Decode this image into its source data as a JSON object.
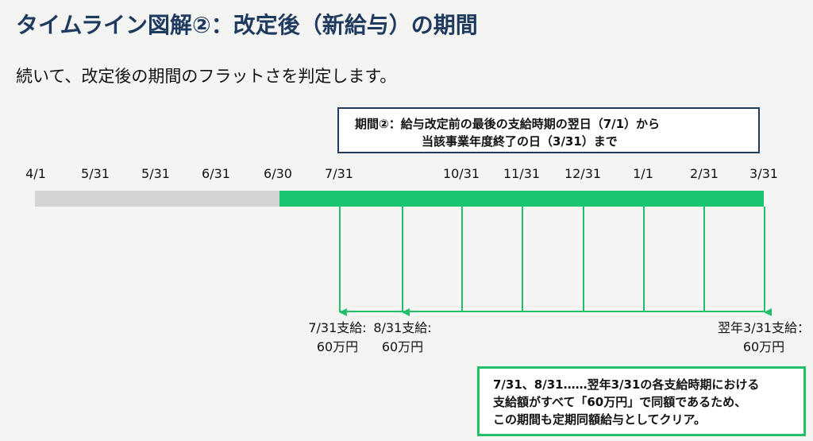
{
  "title": "タイムライン図解②：改定後（新給与）の期間",
  "intro": "続いて、改定後の期間のフラットさを判定します。",
  "period_box": {
    "line1": "期間②：給与改定前の最後の支給時期の翌日（7/1）から",
    "line2": "当該事業年度終了の日（3/31）まで"
  },
  "timeline": {
    "tick_labels": [
      "4/1",
      "5/31",
      "5/31",
      "6/31",
      "6/30",
      "7/31",
      "10/31",
      "11/31",
      "12/31",
      "1/1",
      "2/31",
      "3/31"
    ],
    "payment_labels": [
      {
        "line1": "7/31支給:",
        "line2": "60万円"
      },
      {
        "line1": "8/31支給:",
        "line2": "60万円"
      },
      {
        "line1": "翌年3/31支給：",
        "line2": "60万円"
      }
    ]
  },
  "note": {
    "line1": "7/31、8/31……翌年3/31の各支給時期における",
    "line2": "支給額がすべて「60万円」で同額であるため、",
    "line3": "この期間も定期同額給与としてクリア。"
  },
  "colors": {
    "title": "#1e3a5f",
    "old_period_bar": "#d4d4d4",
    "new_period_bar": "#19c46f",
    "connector": "#22bf6a",
    "box_border": "#1e3a5f",
    "note_border": "#22bf6a"
  }
}
